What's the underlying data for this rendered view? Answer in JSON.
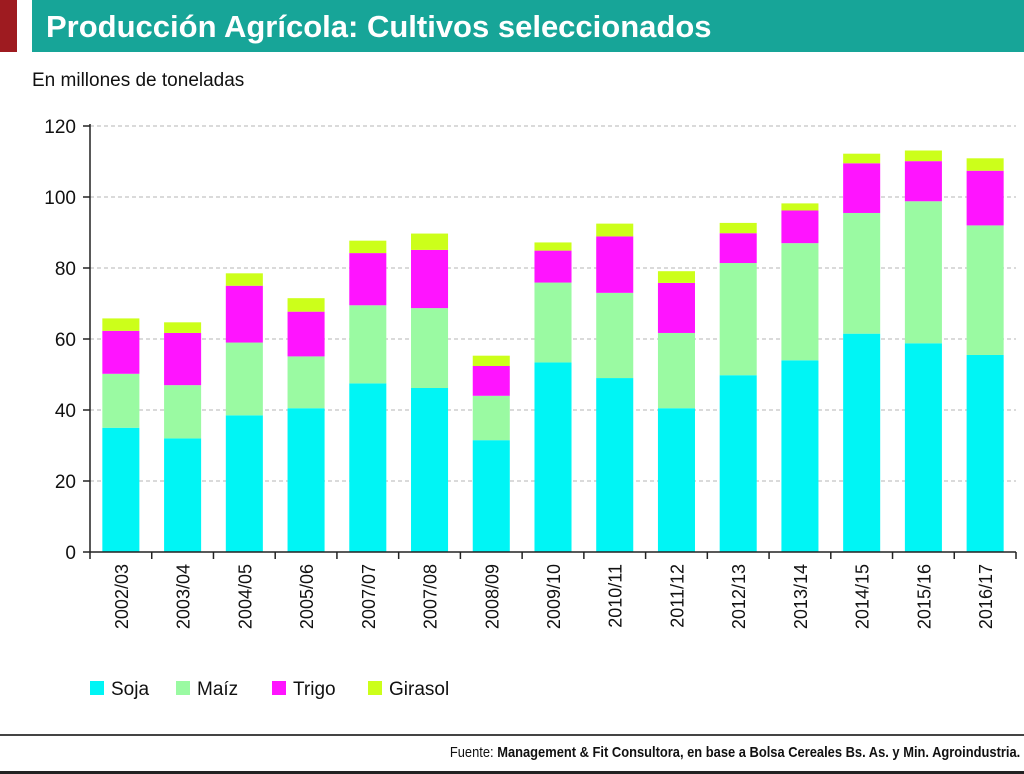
{
  "header": {
    "title": "Producción Agrícola: Cultivos seleccionados",
    "bar_color": "#17a598",
    "accent_color": "#9e1b20"
  },
  "chart_data": {
    "type": "bar",
    "stacked": true,
    "title": "Producción Agrícola: Cultivos seleccionados",
    "ylabel": "En millones de toneladas",
    "xlabel": "",
    "ylim": [
      0,
      120
    ],
    "yticks": [
      0,
      20,
      40,
      60,
      80,
      100,
      120
    ],
    "grid": true,
    "legend_position": "bottom-left",
    "categories": [
      "2002/03",
      "2003/04",
      "2004/05",
      "2005/06",
      "2007/07",
      "2007/08",
      "2008/09",
      "2009/10",
      "2010/11",
      "2011/12",
      "2012/13",
      "2013/14",
      "2014/15",
      "2015/16",
      "2016/17"
    ],
    "series": [
      {
        "name": "Soja",
        "color": "#00f5f5",
        "values": [
          35,
          32,
          38.5,
          40.5,
          47.5,
          46.2,
          31.5,
          53.4,
          49,
          40.5,
          49.8,
          54,
          61.5,
          58.8,
          55.5
        ]
      },
      {
        "name": "Maíz",
        "color": "#9afaa2",
        "values": [
          15.2,
          15,
          20.5,
          14.6,
          22,
          22.5,
          12.5,
          22.5,
          24,
          21.2,
          31.6,
          33,
          34,
          40,
          36.5
        ]
      },
      {
        "name": "Trigo",
        "color": "#ff14ff",
        "values": [
          12.1,
          14.7,
          16,
          12.6,
          14.7,
          16.4,
          8.4,
          9,
          15.9,
          14.1,
          8.4,
          9.2,
          14,
          11.3,
          15.4
        ]
      },
      {
        "name": "Girasol",
        "color": "#ccff1a",
        "values": [
          3.5,
          3,
          3.5,
          3.8,
          3.5,
          4.6,
          2.9,
          2.3,
          3.6,
          3.3,
          2.9,
          2,
          2.7,
          3,
          3.5
        ]
      }
    ]
  },
  "source": {
    "prefix": "Fuente:",
    "text": "Management & Fit Consultora, en base a Bolsa Cereales Bs. As. y Min. Agroindustria."
  }
}
